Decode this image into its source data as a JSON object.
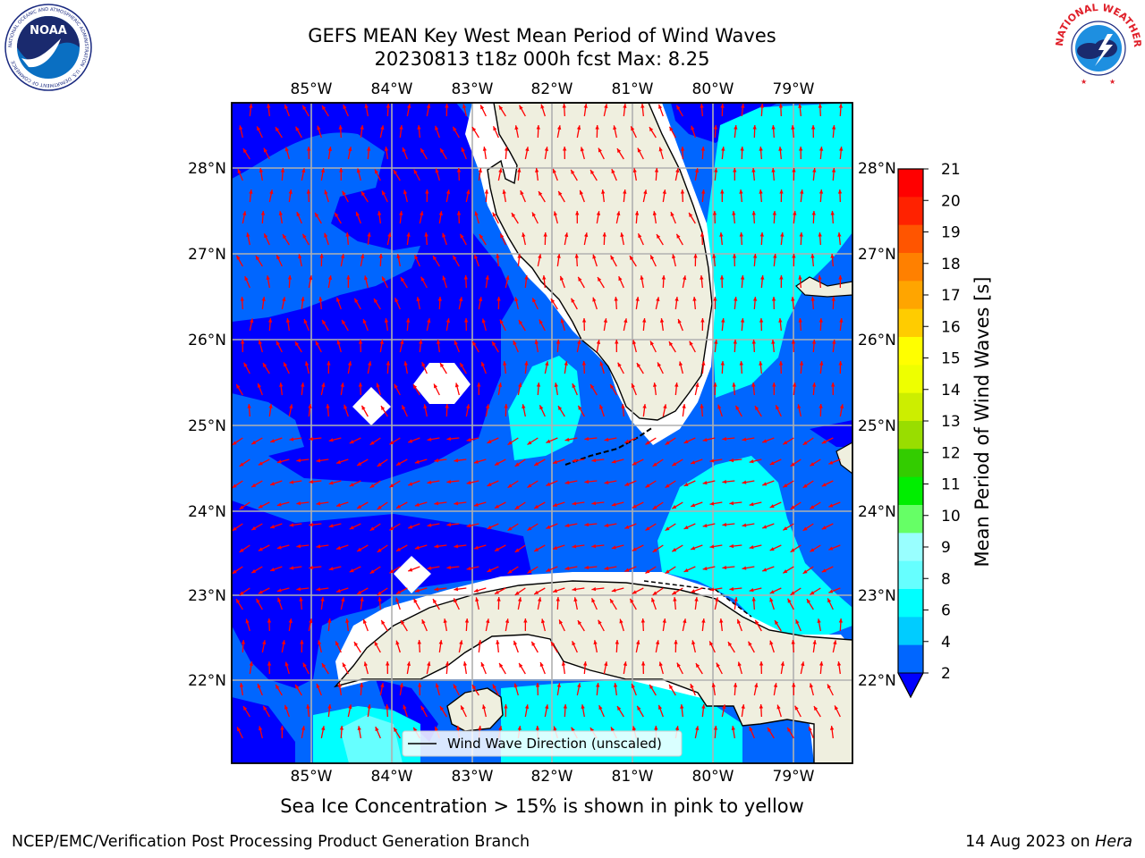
{
  "title_line1": "GEFS MEAN Key West Mean Period of Wind Waves",
  "title_line2": "20230813 t18z 000h fcst   Max: 8.25",
  "noaa_logo_text": "NOAA",
  "noaa_ring_text": "NATIONAL OCEANIC AND ATMOSPHERIC ADMINISTRATION · U.S. DEPARTMENT OF COMMERCE",
  "nws_ring_text": "NATIONAL WEATHER SERVICE",
  "lon_ticks": [
    "85°W",
    "84°W",
    "83°W",
    "82°W",
    "81°W",
    "80°W",
    "79°W"
  ],
  "lat_ticks": [
    "28°N",
    "27°N",
    "26°N",
    "25°N",
    "24°N",
    "23°N",
    "22°N"
  ],
  "legend_label": "Wind Wave Direction (unscaled)",
  "colorbar": {
    "label": "Mean Period of Wind Waves [s]",
    "ticks": [
      "2",
      "4",
      "6",
      "8",
      "9",
      "10",
      "11",
      "12",
      "13",
      "14",
      "15",
      "16",
      "17",
      "18",
      "19",
      "20",
      "21"
    ],
    "colors": [
      "#0066ff",
      "#00ccff",
      "#00ffff",
      "#66ffff",
      "#99ffff",
      "#66ff66",
      "#00ee00",
      "#33cc00",
      "#99dd00",
      "#ccee00",
      "#eeff00",
      "#ffff00",
      "#ffcc00",
      "#ffa500",
      "#ff8000",
      "#ff5500",
      "#ff2200",
      "#ff0000"
    ],
    "extend_color": "#0000ff"
  },
  "colors": {
    "level_2": "#0000ff",
    "level_4": "#0066ff",
    "level_6": "#00ffff",
    "level_8": "#66ffff",
    "land": "#efefdf",
    "arrow": "#ff0000",
    "grid": "#b0b0b0"
  },
  "max_period": 8.25,
  "caption": "Sea Ice Concentration > 15% is shown in pink to yellow",
  "footer_left": "NCEP/EMC/Verification Post Processing Product Generation Branch",
  "footer_date": "14 Aug 2023 on",
  "footer_machine": "Hera"
}
